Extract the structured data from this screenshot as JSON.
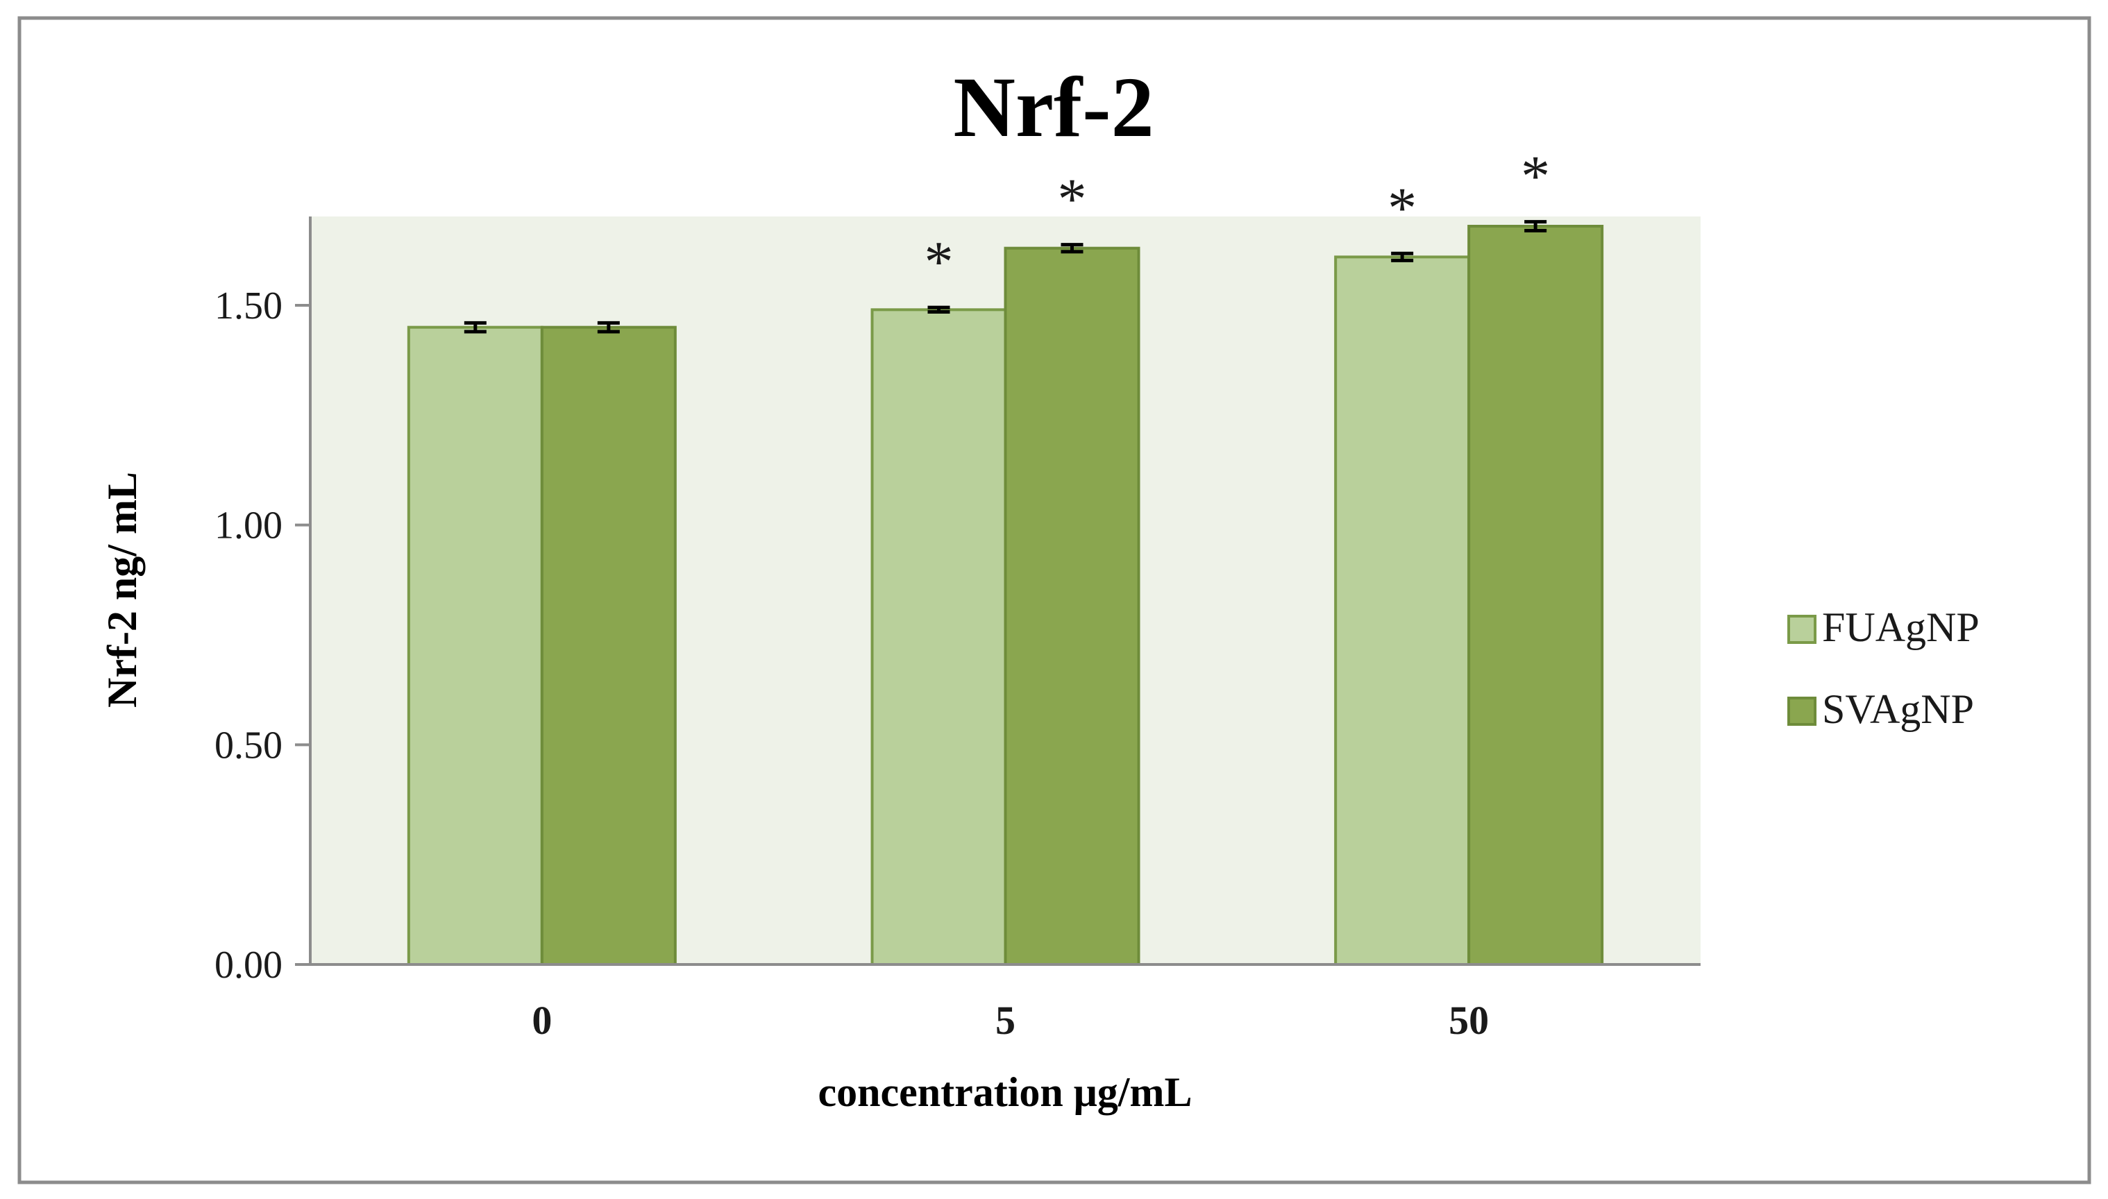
{
  "chart_data": {
    "type": "bar",
    "title": "Nrf-2",
    "xlabel": "concentration μg/mL",
    "ylabel": "Nrf-2 ng/ mL",
    "categories": [
      "0",
      "5",
      "50"
    ],
    "series": [
      {
        "name": "FUAgNP",
        "color": "#b9d09b",
        "stroke": "#7a9a48",
        "values": [
          1.45,
          1.49,
          1.61
        ],
        "errors": [
          0.01,
          0.005,
          0.008
        ],
        "significance": [
          "",
          "*",
          "*"
        ]
      },
      {
        "name": "SVAgNP",
        "color": "#8aa64f",
        "stroke": "#6e8c3a",
        "values": [
          1.45,
          1.63,
          1.68
        ],
        "errors": [
          0.01,
          0.008,
          0.01
        ],
        "significance": [
          "",
          "*",
          "*"
        ]
      }
    ],
    "ylim": [
      0,
      1.7
    ],
    "yticks": [
      0.0,
      0.5,
      1.0,
      1.5
    ],
    "ytick_labels": [
      "0.00",
      "0.50",
      "1.00",
      "1.50"
    ],
    "legend_position": "right",
    "grid": false,
    "plot_background": "#eef2e8"
  }
}
